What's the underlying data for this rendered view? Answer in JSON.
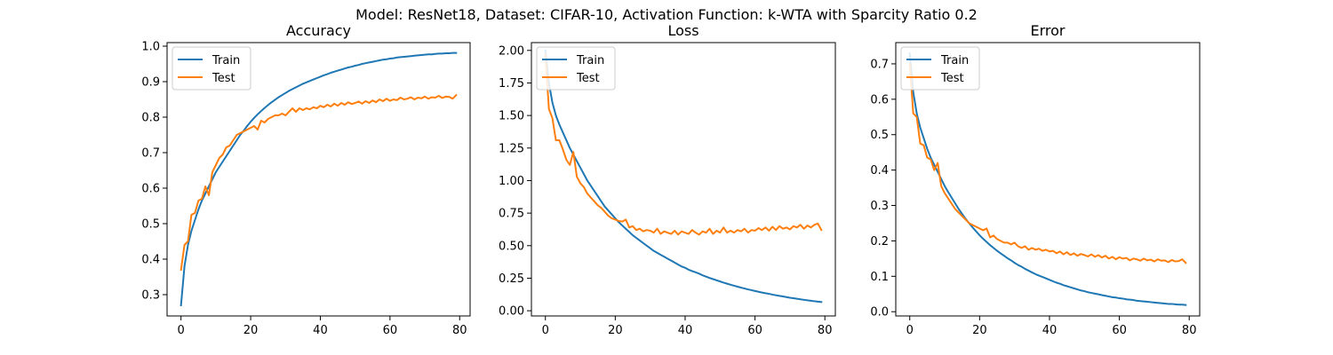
{
  "suptitle": "Model: ResNet18, Dataset: CIFAR-10, Activation Function: k-WTA with Sparcity Ratio 0.2",
  "colors": {
    "train": "#1f77b4",
    "test": "#ff7f0e"
  },
  "chart_data": [
    {
      "type": "line",
      "title": "Accuracy",
      "xlabel": "",
      "ylabel": "",
      "xlim": [
        -4,
        83
      ],
      "ylim": [
        0.24,
        1.01
      ],
      "xticks": [
        0,
        20,
        40,
        60,
        80
      ],
      "yticks": [
        0.3,
        0.4,
        0.5,
        0.6,
        0.7,
        0.8,
        0.9,
        1.0
      ],
      "ytick_labels": [
        "0.3",
        "0.4",
        "0.5",
        "0.6",
        "0.7",
        "0.8",
        "0.9",
        "1.0"
      ],
      "legend": "top-left",
      "series": [
        {
          "name": "Train",
          "color": "#1f77b4",
          "values": [
            0.27,
            0.38,
            0.44,
            0.48,
            0.51,
            0.54,
            0.565,
            0.585,
            0.605,
            0.625,
            0.645,
            0.66,
            0.675,
            0.69,
            0.705,
            0.72,
            0.735,
            0.75,
            0.762,
            0.775,
            0.787,
            0.798,
            0.808,
            0.817,
            0.826,
            0.834,
            0.842,
            0.849,
            0.856,
            0.862,
            0.868,
            0.874,
            0.879,
            0.884,
            0.889,
            0.894,
            0.898,
            0.902,
            0.906,
            0.91,
            0.914,
            0.918,
            0.921,
            0.925,
            0.928,
            0.931,
            0.934,
            0.937,
            0.94,
            0.942,
            0.945,
            0.947,
            0.95,
            0.952,
            0.954,
            0.956,
            0.958,
            0.96,
            0.962,
            0.963,
            0.965,
            0.966,
            0.968,
            0.969,
            0.97,
            0.971,
            0.972,
            0.973,
            0.974,
            0.975,
            0.976,
            0.977,
            0.977,
            0.978,
            0.979,
            0.979,
            0.98,
            0.98,
            0.981,
            0.981
          ]
        },
        {
          "name": "Test",
          "color": "#ff7f0e",
          "values": [
            0.37,
            0.44,
            0.45,
            0.525,
            0.53,
            0.565,
            0.57,
            0.605,
            0.58,
            0.645,
            0.665,
            0.685,
            0.695,
            0.715,
            0.72,
            0.735,
            0.75,
            0.755,
            0.76,
            0.765,
            0.77,
            0.775,
            0.765,
            0.79,
            0.785,
            0.795,
            0.8,
            0.805,
            0.805,
            0.81,
            0.805,
            0.815,
            0.825,
            0.815,
            0.825,
            0.82,
            0.825,
            0.822,
            0.828,
            0.825,
            0.832,
            0.828,
            0.835,
            0.83,
            0.838,
            0.832,
            0.84,
            0.835,
            0.842,
            0.837,
            0.84,
            0.844,
            0.838,
            0.845,
            0.84,
            0.847,
            0.842,
            0.85,
            0.845,
            0.852,
            0.846,
            0.85,
            0.848,
            0.855,
            0.85,
            0.852,
            0.856,
            0.85,
            0.855,
            0.853,
            0.858,
            0.852,
            0.856,
            0.855,
            0.86,
            0.854,
            0.858,
            0.857,
            0.852,
            0.862
          ]
        }
      ]
    },
    {
      "type": "line",
      "title": "Loss",
      "xlabel": "",
      "ylabel": "",
      "xlim": [
        -4,
        83
      ],
      "ylim": [
        -0.04,
        2.06
      ],
      "xticks": [
        0,
        20,
        40,
        60,
        80
      ],
      "yticks": [
        0.0,
        0.25,
        0.5,
        0.75,
        1.0,
        1.25,
        1.5,
        1.75,
        2.0
      ],
      "ytick_labels": [
        "0.00",
        "0.25",
        "0.50",
        "0.75",
        "1.00",
        "1.25",
        "1.50",
        "1.75",
        "2.00"
      ],
      "legend": "top-left",
      "series": [
        {
          "name": "Train",
          "color": "#1f77b4",
          "values": [
            2.0,
            1.75,
            1.6,
            1.5,
            1.43,
            1.37,
            1.31,
            1.25,
            1.2,
            1.15,
            1.1,
            1.05,
            1.0,
            0.96,
            0.92,
            0.88,
            0.84,
            0.8,
            0.77,
            0.74,
            0.71,
            0.68,
            0.655,
            0.63,
            0.605,
            0.58,
            0.56,
            0.54,
            0.52,
            0.5,
            0.48,
            0.46,
            0.445,
            0.43,
            0.415,
            0.4,
            0.385,
            0.37,
            0.355,
            0.34,
            0.33,
            0.315,
            0.305,
            0.295,
            0.285,
            0.272,
            0.262,
            0.252,
            0.243,
            0.234,
            0.225,
            0.216,
            0.208,
            0.2,
            0.192,
            0.185,
            0.178,
            0.171,
            0.164,
            0.158,
            0.152,
            0.146,
            0.14,
            0.135,
            0.13,
            0.124,
            0.119,
            0.114,
            0.11,
            0.105,
            0.1,
            0.096,
            0.092,
            0.088,
            0.084,
            0.08,
            0.077,
            0.073,
            0.07,
            0.067
          ]
        },
        {
          "name": "Test",
          "color": "#ff7f0e",
          "values": [
            1.97,
            1.55,
            1.48,
            1.31,
            1.31,
            1.24,
            1.16,
            1.12,
            1.22,
            1.03,
            0.98,
            0.95,
            0.9,
            0.87,
            0.84,
            0.81,
            0.79,
            0.76,
            0.73,
            0.71,
            0.7,
            0.69,
            0.685,
            0.7,
            0.64,
            0.65,
            0.62,
            0.63,
            0.61,
            0.62,
            0.615,
            0.6,
            0.63,
            0.59,
            0.61,
            0.6,
            0.59,
            0.615,
            0.585,
            0.61,
            0.6,
            0.59,
            0.62,
            0.6,
            0.585,
            0.61,
            0.6,
            0.63,
            0.59,
            0.615,
            0.6,
            0.64,
            0.6,
            0.615,
            0.6,
            0.62,
            0.61,
            0.63,
            0.6,
            0.62,
            0.615,
            0.635,
            0.62,
            0.64,
            0.615,
            0.645,
            0.62,
            0.65,
            0.63,
            0.64,
            0.625,
            0.65,
            0.64,
            0.66,
            0.63,
            0.655,
            0.64,
            0.66,
            0.67,
            0.62
          ]
        }
      ]
    },
    {
      "type": "line",
      "title": "Error",
      "xlabel": "",
      "ylabel": "",
      "xlim": [
        -4,
        83
      ],
      "ylim": [
        -0.012,
        0.76
      ],
      "xticks": [
        0,
        20,
        40,
        60,
        80
      ],
      "yticks": [
        0.0,
        0.1,
        0.2,
        0.3,
        0.4,
        0.5,
        0.6,
        0.7
      ],
      "ytick_labels": [
        "0.0",
        "0.1",
        "0.2",
        "0.3",
        "0.4",
        "0.5",
        "0.6",
        "0.7"
      ],
      "legend": "top-left",
      "series": [
        {
          "name": "Train",
          "color": "#1f77b4",
          "values": [
            0.73,
            0.62,
            0.56,
            0.52,
            0.49,
            0.46,
            0.435,
            0.415,
            0.395,
            0.375,
            0.355,
            0.338,
            0.322,
            0.306,
            0.29,
            0.276,
            0.262,
            0.25,
            0.238,
            0.227,
            0.216,
            0.206,
            0.197,
            0.188,
            0.18,
            0.172,
            0.165,
            0.158,
            0.151,
            0.145,
            0.138,
            0.132,
            0.127,
            0.121,
            0.116,
            0.111,
            0.106,
            0.102,
            0.098,
            0.094,
            0.09,
            0.086,
            0.082,
            0.079,
            0.075,
            0.072,
            0.069,
            0.066,
            0.063,
            0.06,
            0.058,
            0.055,
            0.053,
            0.051,
            0.049,
            0.047,
            0.045,
            0.043,
            0.041,
            0.04,
            0.038,
            0.037,
            0.035,
            0.034,
            0.033,
            0.031,
            0.03,
            0.029,
            0.028,
            0.027,
            0.026,
            0.025,
            0.024,
            0.023,
            0.022,
            0.022,
            0.021,
            0.02,
            0.02,
            0.019
          ]
        },
        {
          "name": "Test",
          "color": "#ff7f0e",
          "values": [
            0.7,
            0.56,
            0.55,
            0.475,
            0.47,
            0.435,
            0.43,
            0.4,
            0.42,
            0.355,
            0.335,
            0.32,
            0.305,
            0.29,
            0.28,
            0.27,
            0.26,
            0.25,
            0.245,
            0.24,
            0.235,
            0.23,
            0.235,
            0.21,
            0.215,
            0.205,
            0.2,
            0.195,
            0.195,
            0.19,
            0.195,
            0.185,
            0.18,
            0.185,
            0.175,
            0.18,
            0.175,
            0.178,
            0.172,
            0.175,
            0.17,
            0.172,
            0.165,
            0.17,
            0.162,
            0.168,
            0.16,
            0.165,
            0.158,
            0.163,
            0.16,
            0.156,
            0.162,
            0.155,
            0.16,
            0.153,
            0.158,
            0.15,
            0.155,
            0.148,
            0.154,
            0.15,
            0.152,
            0.145,
            0.15,
            0.148,
            0.144,
            0.15,
            0.145,
            0.147,
            0.142,
            0.148,
            0.144,
            0.145,
            0.14,
            0.146,
            0.142,
            0.143,
            0.148,
            0.138
          ]
        }
      ]
    }
  ]
}
